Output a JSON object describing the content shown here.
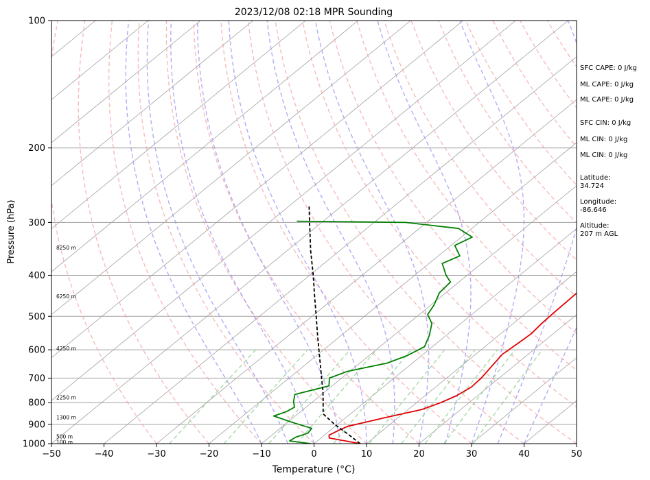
{
  "chart_data": {
    "type": "line",
    "title": "2023/12/08 02:18 MPR Sounding",
    "xlabel": "Temperature (°C)",
    "ylabel": "Pressure (hPa)",
    "xlim": [
      -50,
      50
    ],
    "ylim": [
      1000,
      100
    ],
    "y_scale": "log",
    "x_ticks": [
      "−50",
      "−40",
      "−30",
      "−20",
      "−10",
      "0",
      "10",
      "20",
      "30",
      "40",
      "50"
    ],
    "y_ticks": [
      "1000",
      "900",
      "800",
      "700",
      "600",
      "500",
      "400",
      "300",
      "200",
      "100"
    ],
    "grid": true,
    "skew": "skew-T log-P diagram",
    "colors": {
      "temperature": "#e00000",
      "dewpoint": "#008000",
      "parcel": "#000000",
      "isotherms": "#a0a0a0",
      "dry_adiabats": "#f4a3a3",
      "moist_adiabats": "#9f96f4",
      "mixing_ratio": "#8ed08e"
    },
    "series": [
      {
        "key": "temperature",
        "values": [
          [
            1000,
            8.8
          ],
          [
            985,
            5.3
          ],
          [
            970,
            1.6
          ],
          [
            955,
            0.9
          ],
          [
            930,
            1.6
          ],
          [
            910,
            2.4
          ],
          [
            870,
            7.2
          ],
          [
            830,
            12.6
          ],
          [
            800,
            14.6
          ],
          [
            770,
            16.0
          ],
          [
            735,
            16.8
          ],
          [
            700,
            16.6
          ],
          [
            660,
            15.9
          ],
          [
            615,
            15.1
          ],
          [
            580,
            15.5
          ],
          [
            550,
            15.8
          ],
          [
            520,
            15.4
          ],
          [
            490,
            15.2
          ],
          [
            460,
            15.1
          ],
          [
            430,
            14.9
          ],
          [
            400,
            14.8
          ],
          [
            370,
            15.2
          ],
          [
            340,
            14.8
          ],
          [
            320,
            14.3
          ],
          [
            300,
            14.6
          ],
          [
            285,
            15.0
          ],
          [
            275,
            14.7
          ]
        ]
      },
      {
        "key": "dewpoint",
        "values": [
          [
            1000,
            -0.6
          ],
          [
            985,
            -5.3
          ],
          [
            965,
            -5.0
          ],
          [
            945,
            -3.6
          ],
          [
            920,
            -4.0
          ],
          [
            890,
            -9.2
          ],
          [
            860,
            -14.1
          ],
          [
            840,
            -12.7
          ],
          [
            820,
            -12.2
          ],
          [
            795,
            -13.7
          ],
          [
            765,
            -15.1
          ],
          [
            730,
            -10.6
          ],
          [
            700,
            -12.3
          ],
          [
            675,
            -10.5
          ],
          [
            645,
            -4.8
          ],
          [
            620,
            -2.8
          ],
          [
            590,
            -1.5
          ],
          [
            555,
            -3.2
          ],
          [
            520,
            -5.5
          ],
          [
            495,
            -8.4
          ],
          [
            470,
            -9.4
          ],
          [
            440,
            -11.2
          ],
          [
            415,
            -11.6
          ],
          [
            400,
            -14.0
          ],
          [
            375,
            -17.5
          ],
          [
            360,
            -15.9
          ],
          [
            340,
            -19.3
          ],
          [
            325,
            -17.9
          ],
          [
            310,
            -22.5
          ],
          [
            300,
            -34.0
          ],
          [
            298,
            -55.0
          ]
        ]
      },
      {
        "key": "parcel",
        "values": [
          [
            1000,
            8.8
          ],
          [
            950,
            4.3
          ],
          [
            900,
            -0.6
          ],
          [
            850,
            -5.2
          ],
          [
            800,
            -7.8
          ],
          [
            750,
            -10.6
          ],
          [
            700,
            -13.8
          ],
          [
            650,
            -17.2
          ],
          [
            600,
            -20.9
          ],
          [
            550,
            -24.9
          ],
          [
            500,
            -29.2
          ],
          [
            450,
            -34.0
          ],
          [
            400,
            -39.3
          ],
          [
            350,
            -45.5
          ],
          [
            300,
            -52.3
          ],
          [
            275,
            -56.1
          ]
        ]
      }
    ],
    "height_labels": [
      {
        "p": 995,
        "label": "100 m"
      },
      {
        "p": 965,
        "label": "500 m"
      },
      {
        "p": 870,
        "label": "1300 m"
      },
      {
        "p": 780,
        "label": "2250 m"
      },
      {
        "p": 598,
        "label": "4250 m"
      },
      {
        "p": 450,
        "label": "6250 m"
      },
      {
        "p": 345,
        "label": "8250 m"
      }
    ],
    "indices": {
      "sfc_cape": "SFC CAPE: 0 J/kg",
      "ml_cape_1": "ML CAPE: 0 J/kg",
      "ml_cape_2": "ML CAPE: 0 J/kg",
      "sfc_cin": "SFC CIN: 0 J/kg",
      "ml_cin_1": "ML CIN: 0 J/kg",
      "ml_cin_2": "ML CIN: 0 J/kg",
      "latitude_label": "Latitude:",
      "latitude_value": "34.724",
      "longitude_label": "Longitude:",
      "longitude_value": "-86.646",
      "altitude_label": "Altitude:",
      "altitude_value": "207 m AGL"
    }
  }
}
